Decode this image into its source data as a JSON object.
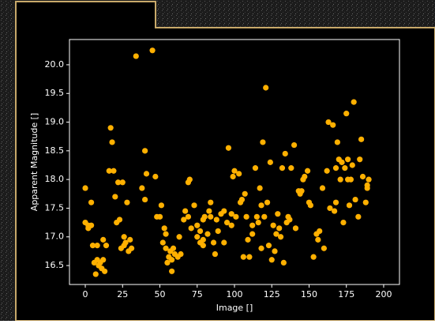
{
  "chart_data": {
    "type": "scatter",
    "xlabel": "Image []",
    "ylabel": "Apparent Magnitude []",
    "color": "#ffb000",
    "xlim": [
      -10.6,
      210.6
    ],
    "ylim": [
      16.17,
      20.44
    ],
    "xticks": [
      0,
      25,
      50,
      75,
      100,
      125,
      150,
      175,
      200
    ],
    "yticks": [
      16.5,
      {
        "value": 17,
        "label": "17.0"
      },
      17.5,
      {
        "value": 18,
        "label": "18.0"
      },
      18.5,
      {
        "value": 19,
        "label": "19.0"
      },
      19.5,
      {
        "value": 20,
        "label": "20.0"
      }
    ],
    "x": [
      0,
      0,
      2,
      2,
      4,
      4,
      5,
      6,
      7,
      8,
      8,
      9,
      10,
      11,
      12,
      12,
      13,
      14,
      16,
      17,
      18,
      19,
      20,
      21,
      22,
      23,
      24,
      25,
      26,
      26,
      27,
      28,
      29,
      30,
      31,
      34,
      38,
      40,
      40,
      41,
      45,
      47,
      48,
      50,
      51,
      52,
      53,
      54,
      54,
      55,
      56,
      57,
      58,
      58,
      59,
      60,
      62,
      63,
      64,
      66,
      67,
      69,
      69,
      70,
      71,
      73,
      75,
      75,
      77,
      77,
      79,
      79,
      79,
      80,
      82,
      83,
      84,
      84,
      86,
      87,
      88,
      89,
      91,
      93,
      93,
      95,
      96,
      98,
      98,
      99,
      100,
      101,
      103,
      104,
      105,
      106,
      107,
      108,
      109,
      110,
      112,
      112,
      114,
      115,
      116,
      117,
      118,
      118,
      119,
      120,
      121,
      122,
      123,
      124,
      125,
      126,
      127,
      128,
      129,
      130,
      131,
      132,
      133,
      134,
      135,
      136,
      137,
      138,
      140,
      141,
      143,
      144,
      145,
      146,
      147,
      149,
      150,
      151,
      153,
      155,
      156,
      157,
      159,
      160,
      162,
      163,
      164,
      166,
      167,
      168,
      168,
      169,
      170,
      171,
      172,
      173,
      174,
      175,
      176,
      176,
      177,
      178,
      179,
      180,
      181,
      183,
      184,
      185,
      186,
      188,
      189,
      189,
      190
    ],
    "values": [
      17.85,
      17.25,
      17.2,
      17.15,
      17.2,
      17.6,
      16.85,
      16.55,
      16.35,
      16.6,
      16.85,
      16.5,
      16.55,
      16.45,
      16.6,
      16.95,
      16.4,
      16.85,
      18.15,
      18.9,
      18.65,
      18.15,
      17.7,
      17.25,
      17.95,
      17.3,
      16.8,
      17.95,
      16.85,
      17.0,
      16.9,
      17.6,
      16.75,
      16.95,
      16.8,
      20.15,
      17.85,
      18.5,
      17.65,
      18.1,
      20.25,
      18.05,
      17.35,
      17.35,
      17.55,
      16.9,
      17.15,
      16.8,
      17.05,
      16.55,
      16.65,
      16.75,
      16.4,
      16.6,
      16.8,
      16.7,
      16.65,
      17.0,
      16.7,
      17.3,
      17.45,
      17.35,
      17.95,
      18.0,
      17.15,
      17.55,
      17.0,
      17.2,
      17.1,
      16.9,
      16.95,
      16.85,
      17.3,
      17.35,
      17.05,
      17.45,
      17.6,
      17.35,
      16.9,
      16.7,
      17.3,
      17.1,
      17.4,
      17.45,
      16.9,
      17.25,
      18.55,
      17.4,
      17.2,
      18.05,
      18.15,
      17.35,
      18.1,
      17.6,
      17.65,
      16.65,
      17.75,
      17.35,
      16.95,
      16.65,
      17.2,
      17.05,
      18.2,
      17.35,
      17.25,
      17.85,
      17.55,
      16.8,
      18.65,
      17.35,
      19.6,
      17.6,
      16.85,
      18.3,
      16.6,
      17.2,
      16.75,
      17.05,
      17.4,
      17.15,
      17.0,
      18.2,
      16.55,
      18.45,
      17.25,
      17.35,
      17.3,
      18.2,
      18.6,
      17.15,
      17.8,
      17.75,
      17.8,
      18.0,
      18.05,
      18.15,
      17.6,
      17.55,
      16.65,
      17.05,
      16.95,
      17.1,
      17.85,
      16.8,
      18.15,
      19.0,
      17.5,
      18.95,
      17.45,
      17.6,
      18.2,
      18.65,
      18.35,
      18.0,
      18.3,
      17.25,
      18.2,
      19.15,
      18.0,
      18.35,
      17.55,
      18.0,
      18.25,
      19.35,
      17.65,
      17.35,
      18.35,
      18.7,
      18.05,
      17.6,
      17.85,
      17.9,
      18.0
    ]
  }
}
